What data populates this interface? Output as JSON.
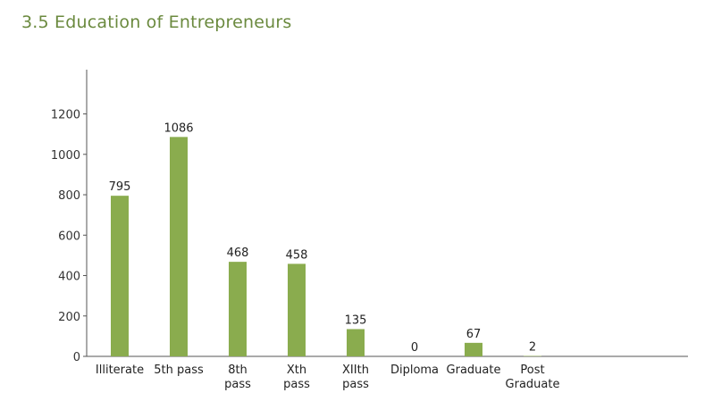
{
  "chart_data": {
    "type": "bar",
    "title": "3.5 Education of Entrepreneurs",
    "categories": [
      [
        "Illiterate"
      ],
      [
        "5th pass"
      ],
      [
        "8th",
        "pass"
      ],
      [
        "Xth",
        "pass"
      ],
      [
        "XIIth",
        "pass"
      ],
      [
        "Diploma"
      ],
      [
        "Graduate"
      ],
      [
        "Post",
        "Graduate"
      ]
    ],
    "values": [
      795,
      1086,
      468,
      458,
      135,
      0,
      67,
      2
    ],
    "data_labels": [
      "795",
      "1086",
      "468",
      "458",
      "135",
      "0",
      "67",
      "2"
    ],
    "yticks": [
      0,
      200,
      400,
      600,
      800,
      1000,
      1200
    ],
    "ylim": [
      0,
      1200
    ],
    "xlabel": "",
    "ylabel": "",
    "grid": false,
    "bar_color": "#8aac4e",
    "title_color": "#6b8a3f",
    "axis_color": "#555555"
  }
}
